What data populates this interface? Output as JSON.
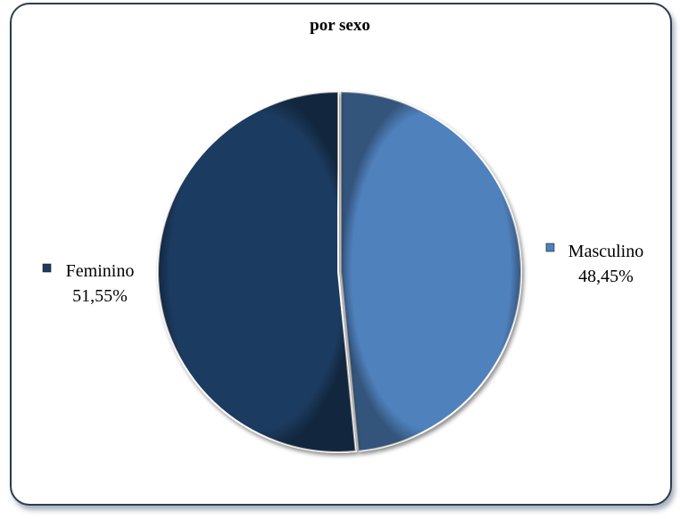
{
  "chart_data": {
    "type": "pie",
    "title": "por sexo",
    "slices": [
      {
        "label": "Masculino",
        "value": 48.45,
        "value_label": "48,45%",
        "color": "#4f81bd"
      },
      {
        "label": "Feminino",
        "value": 51.55,
        "value_label": "51,55%",
        "color": "#1f3a60"
      }
    ],
    "start_angle_deg": 0,
    "direction": "clockwise",
    "legend": "none (category name and percentage labels beside each slice)"
  }
}
